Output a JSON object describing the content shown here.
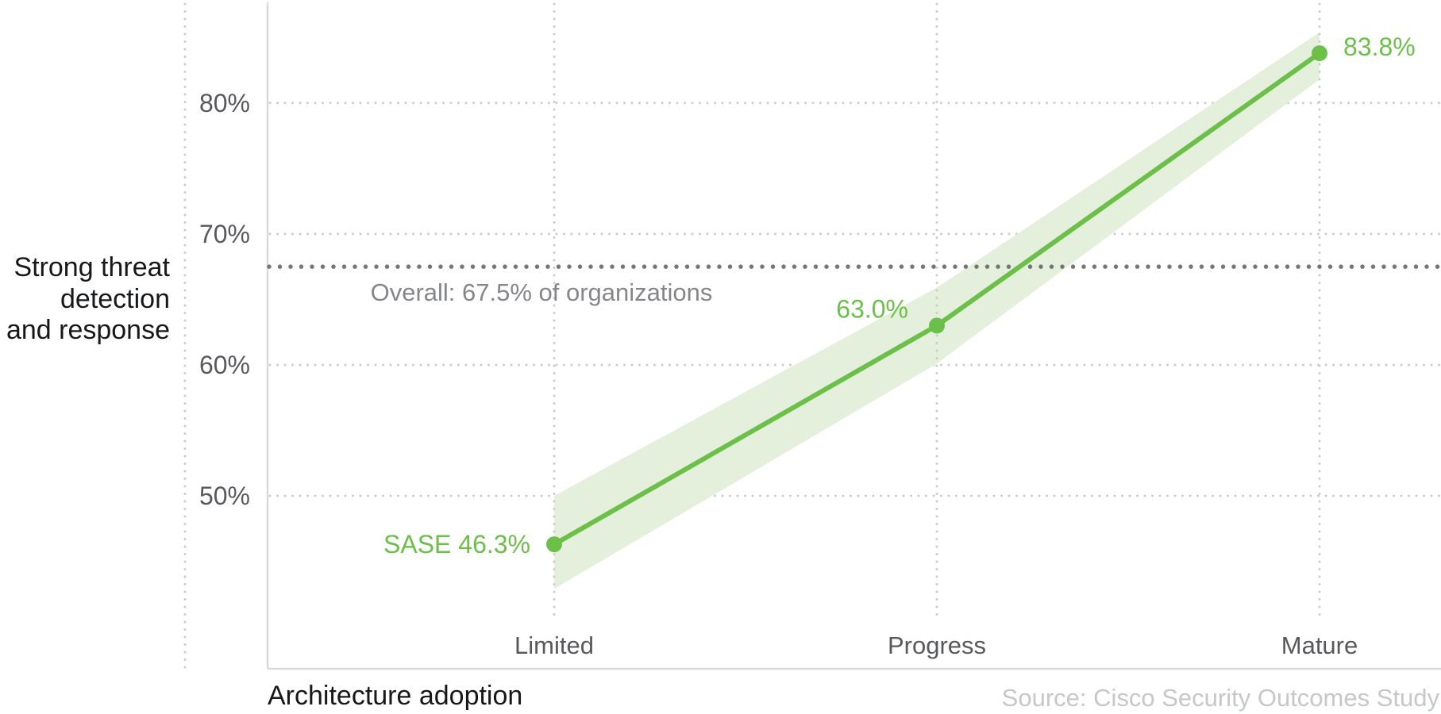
{
  "chart_data": {
    "type": "line",
    "categories": [
      "Limited",
      "Progress",
      "Mature"
    ],
    "series": [
      {
        "name": "SASE",
        "values": [
          46.3,
          63.0,
          83.8
        ]
      }
    ],
    "band": {
      "upper": [
        50.0,
        65.9,
        85.4
      ],
      "lower": [
        42.9,
        60.1,
        81.8
      ]
    },
    "point_labels": [
      "SASE 46.3%",
      "63.0%",
      "83.8%"
    ],
    "yticks": [
      {
        "value": 80,
        "label": "80%"
      },
      {
        "value": 70,
        "label": "70%"
      },
      {
        "value": 60,
        "label": "60%"
      },
      {
        "value": 50,
        "label": "50%"
      }
    ],
    "ylim": [
      40.7,
      87.4
    ],
    "xlabel": "Architecture adoption",
    "ylabel": "Strong threat\ndetection\nand response",
    "reference_line": {
      "value": 67.5,
      "label": "Overall: 67.5% of organizations"
    },
    "grid": true,
    "legend": "none",
    "colors": {
      "line": "#6cc04a",
      "band": "#e4f0dc",
      "grid": "#cccccc",
      "axis": "#d9d9d9",
      "reference": "#757575",
      "tick_text": "#58595c",
      "label_text": "#17181a",
      "annotation_text": "#85868a",
      "source_text": "#c5c7c9"
    }
  },
  "footer": {
    "source": "Source: Cisco Security Outcomes Study"
  }
}
